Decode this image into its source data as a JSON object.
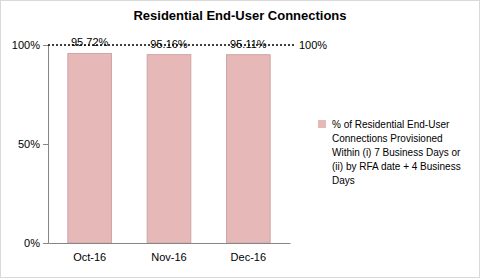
{
  "chart_data": {
    "type": "bar",
    "title": "Residential End-User Connections",
    "categories": [
      "Oct-16",
      "Nov-16",
      "Dec-16"
    ],
    "series": [
      {
        "name": "% of Residential End-User Connections Provisioned Within (i) 7 Business Days or (ii) by RFA date + 4 Business Days",
        "color": "#e6b9b8",
        "values": [
          95.72,
          95.16,
          95.11
        ],
        "value_labels": [
          "95.72%",
          "95.16%",
          "95.11%"
        ]
      }
    ],
    "ylim": [
      0,
      100
    ],
    "yticks": [
      {
        "value": 0,
        "label": "0%"
      },
      {
        "value": 50,
        "label": "50%"
      },
      {
        "value": 100,
        "label": "100%"
      }
    ],
    "reference_line": {
      "value": 100,
      "label": "100%"
    },
    "data_labels": true,
    "legend": "right"
  }
}
